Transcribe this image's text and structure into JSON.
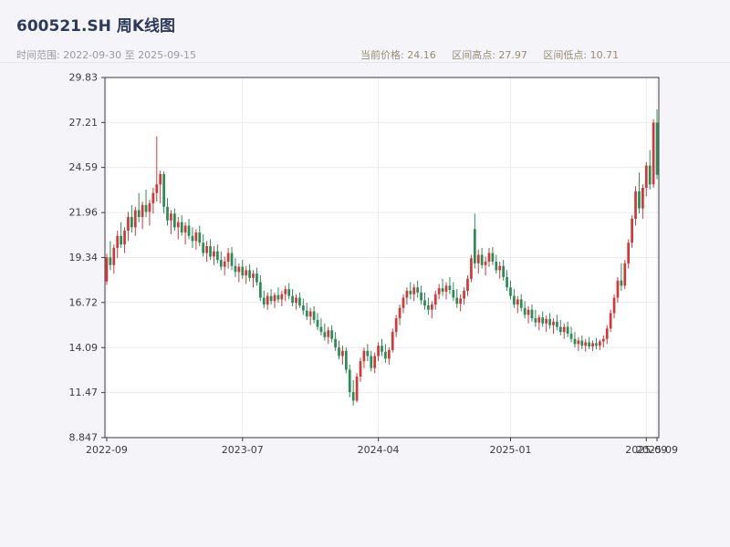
{
  "header": {
    "title": "600521.SH 周K线图",
    "time_range": "时间范围: 2022-09-30 至 2025-09-15",
    "stats": {
      "current": "当前价格: 24.16",
      "high": "区间高点: 27.97",
      "low": "区间低点: 10.71"
    }
  },
  "chart_data": {
    "type": "candlestick",
    "title": "600521.SH 周K线图",
    "interval": "weekly",
    "date_range": [
      "2022-09-30",
      "2025-09-15"
    ],
    "current_price": 24.16,
    "range_high": 27.97,
    "range_low": 10.71,
    "xlabel": "",
    "ylabel": "",
    "grid": true,
    "ylim": [
      8.847,
      29.83
    ],
    "y_ticks": [
      "8.847",
      "11.47",
      "14.09",
      "16.72",
      "19.34",
      "21.96",
      "24.59",
      "27.21",
      "29.83"
    ],
    "x_ticks": [
      {
        "index": 0,
        "label": "2022-09"
      },
      {
        "index": 38,
        "label": "2023-07"
      },
      {
        "index": 76,
        "label": "2024-04"
      },
      {
        "index": 113,
        "label": "2025-01"
      },
      {
        "index": 151,
        "label": "2025-09"
      },
      {
        "index": 154,
        "label": "2025-09"
      }
    ],
    "colors": {
      "up": "#c83c3c",
      "down": "#2e8b57",
      "grid": "#ebebf1",
      "frame": "#3a3a3a",
      "tick_text": "#3c3c3c",
      "plot_bg": "#ffffff",
      "page_bg": "#f4f4f9"
    },
    "ohlc": [
      [
        17.95,
        19.55,
        17.75,
        19.35
      ],
      [
        19.35,
        20.3,
        18.6,
        18.9
      ],
      [
        18.9,
        20.1,
        18.4,
        19.9
      ],
      [
        19.9,
        20.9,
        19.3,
        20.6
      ],
      [
        20.6,
        21.4,
        19.9,
        20.1
      ],
      [
        20.1,
        21.1,
        19.6,
        20.9
      ],
      [
        20.9,
        22.0,
        20.3,
        21.7
      ],
      [
        21.7,
        22.4,
        20.8,
        21.1
      ],
      [
        21.1,
        22.3,
        20.6,
        22.1
      ],
      [
        22.1,
        23.1,
        21.4,
        21.7
      ],
      [
        21.7,
        22.6,
        21.0,
        22.4
      ],
      [
        22.4,
        23.3,
        21.7,
        22.0
      ],
      [
        22.0,
        22.7,
        21.2,
        22.5
      ],
      [
        22.5,
        23.4,
        21.9,
        23.1
      ],
      [
        23.1,
        26.4,
        22.6,
        23.6
      ],
      [
        23.6,
        24.4,
        22.5,
        24.2
      ],
      [
        24.2,
        24.35,
        21.9,
        22.3
      ],
      [
        22.3,
        22.8,
        21.2,
        21.5
      ],
      [
        21.5,
        22.1,
        20.7,
        21.9
      ],
      [
        21.9,
        22.2,
        20.9,
        21.1
      ],
      [
        21.1,
        21.7,
        20.4,
        21.4
      ],
      [
        21.4,
        21.8,
        20.6,
        20.8
      ],
      [
        20.8,
        21.4,
        20.1,
        21.2
      ],
      [
        21.2,
        21.6,
        20.4,
        20.6
      ],
      [
        20.6,
        21.1,
        19.9,
        20.3
      ],
      [
        20.3,
        21.0,
        19.8,
        20.8
      ],
      [
        20.8,
        21.2,
        20.0,
        20.2
      ],
      [
        20.2,
        20.7,
        19.4,
        19.6
      ],
      [
        19.6,
        20.3,
        19.1,
        20.0
      ],
      [
        20.0,
        20.4,
        19.2,
        19.4
      ],
      [
        19.4,
        20.0,
        18.9,
        19.7
      ],
      [
        19.7,
        20.1,
        19.0,
        19.2
      ],
      [
        19.2,
        19.7,
        18.6,
        18.8
      ],
      [
        18.8,
        19.4,
        18.3,
        19.1
      ],
      [
        19.1,
        19.9,
        18.7,
        19.6
      ],
      [
        19.6,
        19.95,
        18.6,
        18.85
      ],
      [
        18.85,
        19.3,
        18.2,
        18.5
      ],
      [
        18.5,
        19.0,
        17.9,
        18.8
      ],
      [
        18.8,
        19.2,
        18.1,
        18.3
      ],
      [
        18.3,
        18.85,
        17.8,
        18.6
      ],
      [
        18.6,
        18.95,
        17.95,
        18.15
      ],
      [
        18.15,
        18.6,
        17.6,
        18.4
      ],
      [
        18.4,
        18.75,
        17.7,
        17.9
      ],
      [
        17.9,
        18.3,
        16.8,
        17.0
      ],
      [
        17.0,
        17.4,
        16.4,
        16.6
      ],
      [
        16.6,
        17.3,
        16.3,
        17.1
      ],
      [
        17.1,
        17.5,
        16.6,
        16.8
      ],
      [
        16.8,
        17.3,
        16.4,
        17.15
      ],
      [
        17.15,
        17.6,
        16.7,
        16.9
      ],
      [
        16.9,
        17.4,
        16.5,
        17.2
      ],
      [
        17.2,
        17.7,
        16.8,
        17.5
      ],
      [
        17.5,
        17.85,
        16.9,
        17.1
      ],
      [
        17.1,
        17.5,
        16.5,
        16.7
      ],
      [
        16.7,
        17.2,
        16.3,
        17.0
      ],
      [
        17.0,
        17.3,
        16.4,
        16.55
      ],
      [
        16.55,
        16.95,
        16.0,
        16.25
      ],
      [
        16.25,
        16.7,
        15.7,
        15.9
      ],
      [
        15.9,
        16.4,
        15.4,
        16.2
      ],
      [
        16.2,
        16.5,
        15.5,
        15.7
      ],
      [
        15.7,
        16.1,
        15.1,
        15.3
      ],
      [
        15.3,
        15.8,
        14.8,
        15.0
      ],
      [
        15.0,
        15.5,
        14.5,
        14.7
      ],
      [
        14.7,
        15.3,
        14.3,
        15.1
      ],
      [
        15.1,
        15.4,
        14.4,
        14.6
      ],
      [
        14.6,
        15.0,
        13.9,
        14.1
      ],
      [
        14.1,
        14.5,
        13.4,
        13.6
      ],
      [
        13.6,
        14.2,
        13.1,
        13.9
      ],
      [
        13.9,
        14.1,
        12.6,
        12.8
      ],
      [
        12.8,
        13.1,
        11.2,
        11.5
      ],
      [
        11.5,
        12.2,
        10.71,
        11.0
      ],
      [
        11.0,
        12.6,
        10.9,
        12.4
      ],
      [
        12.4,
        13.5,
        12.1,
        13.3
      ],
      [
        13.3,
        14.1,
        12.9,
        13.9
      ],
      [
        13.9,
        14.3,
        13.3,
        13.6
      ],
      [
        13.6,
        13.9,
        12.7,
        12.9
      ],
      [
        12.9,
        13.8,
        12.6,
        13.6
      ],
      [
        13.6,
        14.4,
        13.3,
        14.2
      ],
      [
        14.2,
        14.6,
        13.6,
        13.85
      ],
      [
        13.85,
        14.3,
        13.2,
        13.45
      ],
      [
        13.45,
        14.1,
        13.1,
        13.95
      ],
      [
        13.95,
        15.2,
        13.8,
        15.0
      ],
      [
        15.0,
        16.0,
        14.7,
        15.8
      ],
      [
        15.8,
        16.6,
        15.4,
        16.4
      ],
      [
        16.4,
        17.2,
        16.1,
        17.0
      ],
      [
        17.0,
        17.6,
        16.6,
        17.4
      ],
      [
        17.4,
        17.9,
        16.9,
        17.2
      ],
      [
        17.2,
        17.8,
        16.8,
        17.6
      ],
      [
        17.6,
        18.0,
        17.0,
        17.3
      ],
      [
        17.3,
        17.7,
        16.6,
        16.85
      ],
      [
        16.85,
        17.3,
        16.3,
        16.55
      ],
      [
        16.55,
        17.0,
        16.0,
        16.3
      ],
      [
        16.3,
        16.8,
        15.8,
        16.6
      ],
      [
        16.6,
        17.4,
        16.3,
        17.2
      ],
      [
        17.2,
        17.8,
        16.9,
        17.55
      ],
      [
        17.55,
        18.1,
        17.1,
        17.35
      ],
      [
        17.35,
        17.9,
        16.9,
        17.7
      ],
      [
        17.7,
        18.2,
        17.2,
        17.45
      ],
      [
        17.45,
        17.9,
        16.8,
        17.0
      ],
      [
        17.0,
        17.5,
        16.4,
        16.65
      ],
      [
        16.65,
        17.2,
        16.2,
        16.95
      ],
      [
        16.95,
        17.6,
        16.6,
        17.4
      ],
      [
        17.4,
        18.3,
        17.1,
        18.1
      ],
      [
        18.1,
        19.5,
        17.9,
        19.3
      ],
      [
        21.0,
        21.9,
        18.7,
        19.0
      ],
      [
        19.0,
        19.8,
        18.4,
        19.5
      ],
      [
        19.5,
        19.9,
        18.7,
        18.9
      ],
      [
        18.9,
        19.4,
        18.3,
        19.1
      ],
      [
        19.1,
        19.9,
        18.8,
        19.6
      ],
      [
        19.6,
        19.95,
        18.9,
        19.1
      ],
      [
        19.1,
        19.5,
        18.4,
        18.6
      ],
      [
        18.6,
        19.1,
        18.1,
        18.85
      ],
      [
        18.85,
        19.2,
        18.0,
        18.2
      ],
      [
        18.2,
        18.6,
        17.4,
        17.6
      ],
      [
        17.6,
        18.0,
        16.9,
        17.1
      ],
      [
        17.1,
        17.5,
        16.4,
        16.6
      ],
      [
        16.6,
        17.1,
        16.1,
        16.9
      ],
      [
        16.9,
        17.2,
        16.2,
        16.4
      ],
      [
        16.4,
        16.8,
        15.8,
        16.0
      ],
      [
        16.0,
        16.5,
        15.5,
        16.3
      ],
      [
        16.3,
        16.6,
        15.6,
        15.8
      ],
      [
        15.8,
        16.3,
        15.3,
        15.55
      ],
      [
        15.55,
        16.0,
        15.1,
        15.85
      ],
      [
        15.85,
        16.2,
        15.3,
        15.5
      ],
      [
        15.5,
        15.95,
        15.0,
        15.75
      ],
      [
        15.75,
        16.1,
        15.2,
        15.4
      ],
      [
        15.4,
        15.8,
        14.9,
        15.6
      ],
      [
        15.6,
        16.0,
        15.1,
        15.3
      ],
      [
        15.3,
        15.7,
        14.8,
        15.0
      ],
      [
        15.0,
        15.5,
        14.6,
        15.3
      ],
      [
        15.3,
        15.6,
        14.7,
        14.9
      ],
      [
        14.9,
        15.3,
        14.4,
        14.6
      ],
      [
        14.6,
        15.0,
        14.1,
        14.3
      ],
      [
        14.3,
        14.7,
        13.9,
        14.5
      ],
      [
        14.5,
        14.8,
        14.0,
        14.2
      ],
      [
        14.2,
        14.6,
        13.85,
        14.4
      ],
      [
        14.4,
        14.7,
        14.0,
        14.15
      ],
      [
        14.15,
        14.5,
        13.9,
        14.35
      ],
      [
        14.35,
        14.65,
        14.0,
        14.2
      ],
      [
        14.2,
        14.55,
        13.95,
        14.45
      ],
      [
        14.45,
        14.8,
        14.1,
        14.6
      ],
      [
        14.6,
        15.4,
        14.3,
        15.2
      ],
      [
        15.2,
        16.3,
        15.0,
        16.1
      ],
      [
        16.1,
        17.2,
        15.8,
        17.0
      ],
      [
        17.0,
        18.2,
        16.7,
        18.0
      ],
      [
        18.0,
        19.0,
        17.4,
        17.7
      ],
      [
        17.7,
        19.2,
        17.5,
        19.0
      ],
      [
        19.0,
        20.4,
        18.7,
        20.2
      ],
      [
        20.2,
        21.8,
        19.9,
        21.6
      ],
      [
        21.6,
        23.5,
        21.2,
        23.2
      ],
      [
        23.2,
        24.3,
        21.9,
        22.2
      ],
      [
        22.2,
        23.6,
        21.6,
        23.4
      ],
      [
        23.4,
        24.9,
        22.9,
        24.7
      ],
      [
        24.7,
        25.6,
        23.3,
        23.6
      ],
      [
        23.6,
        27.4,
        23.4,
        27.2
      ],
      [
        27.2,
        27.97,
        23.9,
        24.16
      ]
    ]
  }
}
